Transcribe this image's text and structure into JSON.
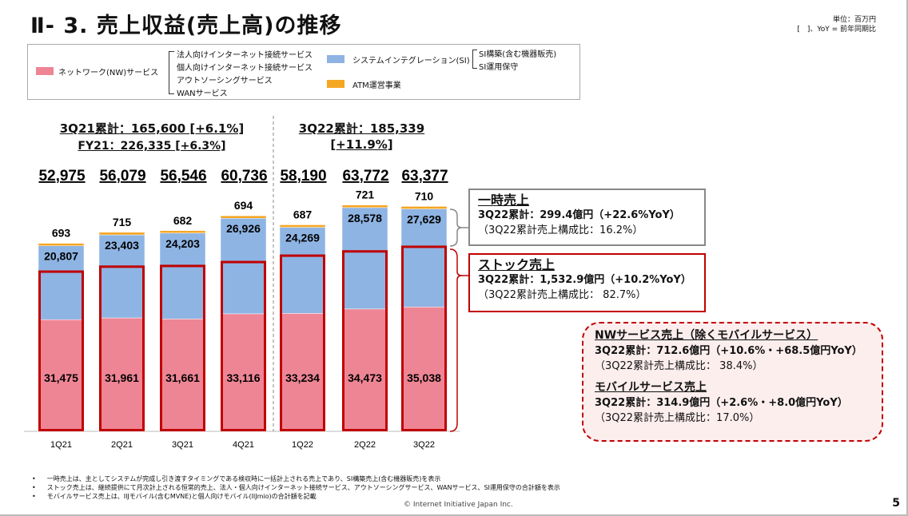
{
  "title": "Ⅱ- 3.  売上収益(売上高)の推移",
  "unit_note": "単位：百万円",
  "yoy_note": "[　]、YoY = 前年同期比",
  "legend": {
    "nw": {
      "label": "ネットワーク(NW)サービス",
      "items": [
        "法人向けインターネット接続サービス",
        "個人向けインターネット接続サービス",
        "アウトソーシングサービス",
        "WANサービス"
      ]
    },
    "si": {
      "label": "システムインテグレーション(SI)",
      "items": [
        "SI構築(含む機器販売)",
        "SI運用保守"
      ]
    },
    "atm": {
      "label": "ATM運営事業"
    }
  },
  "headers": {
    "fy21_line1": "3Q21累計：165,600 [+6.1%]",
    "fy21_line2": "FY21：226,335 [+6.3%]",
    "fy22_line1": "3Q22累計：185,339",
    "fy22_line2": "[+11.9%]"
  },
  "chart_data": {
    "type": "bar",
    "stacked": true,
    "categories": [
      "1Q21",
      "2Q21",
      "3Q21",
      "4Q21",
      "1Q22",
      "2Q22",
      "3Q22"
    ],
    "series": [
      {
        "name": "ネットワーク(NW)サービス",
        "color": "#ee8595",
        "values": [
          31475,
          31961,
          31661,
          33116,
          33234,
          34473,
          35038
        ]
      },
      {
        "name": "システムインテグレーション(SI)",
        "color": "#8eb4e3",
        "values": [
          20807,
          23403,
          24203,
          26926,
          24269,
          28578,
          27629
        ]
      },
      {
        "name": "ATM運営事業",
        "color": "#f5a623",
        "values": [
          693,
          715,
          682,
          694,
          687,
          721,
          710
        ]
      }
    ],
    "totals": [
      "52,975",
      "56,079",
      "56,546",
      "60,736",
      "58,190",
      "63,772",
      "63,377"
    ],
    "stock_outline_estimated": [
      45000,
      46400,
      46600,
      47700,
      49500,
      50700,
      52000
    ],
    "ylim": [
      0,
      70000
    ],
    "grid": false
  },
  "callouts": {
    "onetime": {
      "title": "一時売上",
      "line1": "3Q22累計：299.4億円（+22.6%YoY）",
      "line2": "（3Q22累計売上構成比：16.2%）"
    },
    "stock": {
      "title": "ストック売上",
      "line1": "3Q22累計：1,532.9億円（+10.2%YoY）",
      "line2": "（3Q22累計売上構成比： 82.7%）"
    },
    "nw": {
      "title": "NWサービス売上（除くモバイルサービス）",
      "line1": "3Q22累計：712.6億円（+10.6%・+68.5億円YoY）",
      "line2": "（3Q22累計売上構成比： 38.4%）"
    },
    "mobile": {
      "title": "モバイルサービス売上",
      "line1": "3Q22累計：314.9億円（+2.6%・+8.0億円YoY）",
      "line2": "（3Q22累計売上構成比：17.0%）"
    }
  },
  "notes": [
    "一時売上は、主としてシステムが完成し引き渡すタイミングである検収時に一括計上される売上であり、SI構築売上(含む機器販売)を表示",
    "ストック売上は、継続提供にて月次計上される恒常的売上、法人・個人向けインターネット接続サービス、アウトソーシングサービス、WANサービス、SI運用保守の合計額を表示",
    "モバイルサービス売上は、IIJモバイル(含むMVNE)と個人向けモバイル(IIJmio)の合計額を記載"
  ],
  "copyright": "© Internet Initiative Japan Inc.",
  "page_number": "5"
}
